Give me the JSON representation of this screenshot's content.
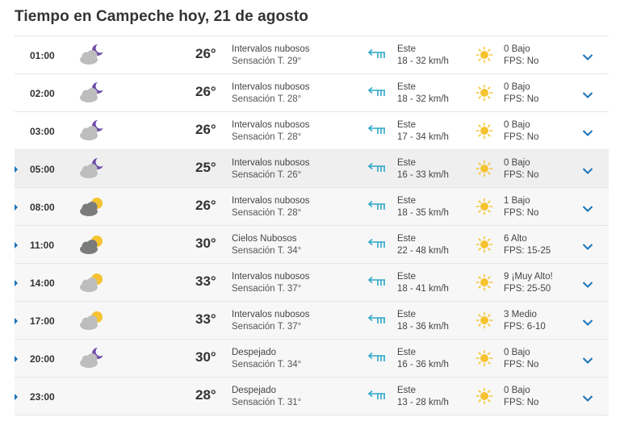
{
  "title": "Tiempo en Campeche hoy, 21 de agosto",
  "colors": {
    "accent": "#1a73b8",
    "wind_icon": "#2fa7c7",
    "sun": "#f5c330",
    "moon": "#6c4aa8",
    "cloud_light": "#b9b9b9",
    "cloud_dark": "#7a7a7a"
  },
  "rows": [
    {
      "time": "01:00",
      "icon": "cloud-moon-icon",
      "temp": "26°",
      "desc": "Intervalos nubosos",
      "feels": "Sensación T. 29°",
      "wind_dir": "Este",
      "wind_speed": "18 - 32 km/h",
      "uv": "0 Bajo",
      "fps": "FPS: No",
      "has_caret": false
    },
    {
      "time": "02:00",
      "icon": "cloud-moon-icon",
      "temp": "26°",
      "desc": "Intervalos nubosos",
      "feels": "Sensación T. 28°",
      "wind_dir": "Este",
      "wind_speed": "18 - 32 km/h",
      "uv": "0 Bajo",
      "fps": "FPS: No",
      "has_caret": false
    },
    {
      "time": "03:00",
      "icon": "cloud-moon-icon",
      "temp": "26°",
      "desc": "Intervalos nubosos",
      "feels": "Sensación T. 28°",
      "wind_dir": "Este",
      "wind_speed": "17 - 34 km/h",
      "uv": "0 Bajo",
      "fps": "FPS: No",
      "has_caret": false
    },
    {
      "time": "05:00",
      "icon": "cloud-moon-icon",
      "temp": "25°",
      "desc": "Intervalos nubosos",
      "feels": "Sensación T. 26°",
      "wind_dir": "Este",
      "wind_speed": "16 - 33 km/h",
      "uv": "0 Bajo",
      "fps": "FPS: No",
      "has_caret": true
    },
    {
      "time": "08:00",
      "icon": "dark-cloud-sun-icon",
      "temp": "26°",
      "desc": "Intervalos nubosos",
      "feels": "Sensación T. 28°",
      "wind_dir": "Este",
      "wind_speed": "18 - 35 km/h",
      "uv": "1 Bajo",
      "fps": "FPS: No",
      "has_caret": true
    },
    {
      "time": "11:00",
      "icon": "dark-cloud-sun-icon",
      "temp": "30°",
      "desc": "Cielos Nubosos",
      "feels": "Sensación T. 34°",
      "wind_dir": "Este",
      "wind_speed": "22 - 48 km/h",
      "uv": "6 Alto",
      "fps": "FPS: 15-25",
      "has_caret": true
    },
    {
      "time": "14:00",
      "icon": "cloud-sun-icon",
      "temp": "33°",
      "desc": "Intervalos nubosos",
      "feels": "Sensación T. 37°",
      "wind_dir": "Este",
      "wind_speed": "18 - 41 km/h",
      "uv": "9 ¡Muy Alto!",
      "fps": "FPS: 25-50",
      "has_caret": true
    },
    {
      "time": "17:00",
      "icon": "cloud-sun-icon",
      "temp": "33°",
      "desc": "Intervalos nubosos",
      "feels": "Sensación T. 37°",
      "wind_dir": "Este",
      "wind_speed": "18 - 36 km/h",
      "uv": "3 Medio",
      "fps": "FPS: 6-10",
      "has_caret": true
    },
    {
      "time": "20:00",
      "icon": "cloud-moon-icon",
      "temp": "30°",
      "desc": "Despejado",
      "feels": "Sensación T. 34°",
      "wind_dir": "Este",
      "wind_speed": "16 - 36 km/h",
      "uv": "0 Bajo",
      "fps": "FPS: No",
      "has_caret": true
    },
    {
      "time": "23:00",
      "icon": "moon-icon",
      "temp": "28°",
      "desc": "Despejado",
      "feels": "Sensación T. 31°",
      "wind_dir": "Este",
      "wind_speed": "13 - 28 km/h",
      "uv": "0 Bajo",
      "fps": "FPS: No",
      "has_caret": true
    }
  ]
}
